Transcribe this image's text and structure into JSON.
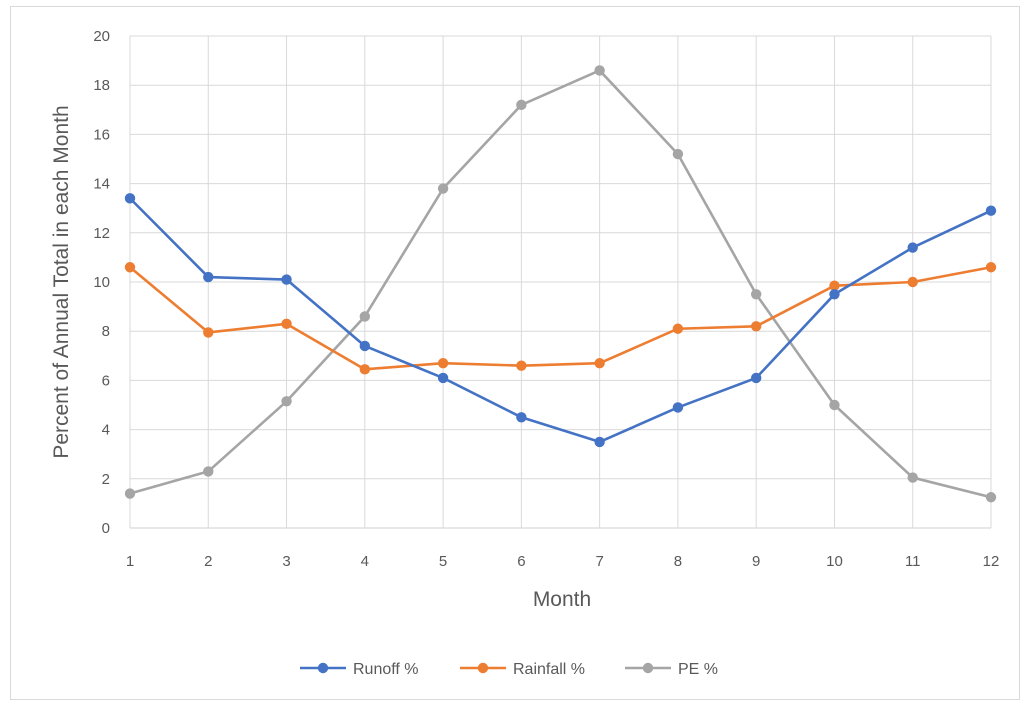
{
  "chart_data": {
    "type": "line",
    "title": "",
    "xlabel": "Month",
    "ylabel": "Percent of Annual Total in each Month",
    "x": [
      1,
      2,
      3,
      4,
      5,
      6,
      7,
      8,
      9,
      10,
      11,
      12
    ],
    "ylim": [
      0,
      20
    ],
    "y_ticks": [
      0,
      2,
      4,
      6,
      8,
      10,
      12,
      14,
      16,
      18,
      20
    ],
    "grid": true,
    "legend_position": "bottom",
    "series": [
      {
        "name": "Runoff %",
        "color": "#4472c4",
        "values": [
          13.4,
          10.2,
          10.1,
          7.4,
          6.1,
          4.5,
          3.5,
          4.9,
          6.1,
          9.5,
          11.4,
          12.9
        ]
      },
      {
        "name": "Rainfall %",
        "color": "#ed7d31",
        "values": [
          10.6,
          7.95,
          8.3,
          6.45,
          6.7,
          6.6,
          6.7,
          8.1,
          8.2,
          9.85,
          10.0,
          10.6
        ]
      },
      {
        "name": "PE %",
        "color": "#a5a5a5",
        "values": [
          1.4,
          2.3,
          5.15,
          8.6,
          13.8,
          17.2,
          18.6,
          15.2,
          9.5,
          5.0,
          2.05,
          1.25
        ]
      }
    ]
  }
}
